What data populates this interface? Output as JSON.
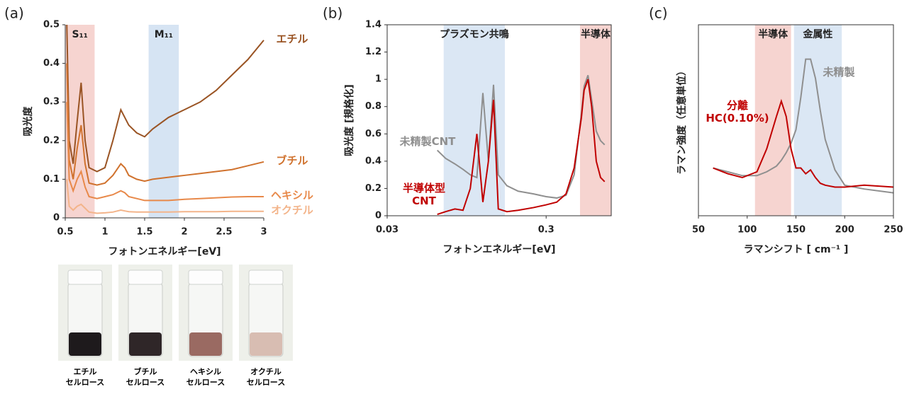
{
  "chart_data": [
    {
      "type": "line",
      "title": "(a)",
      "xlabel": "フォトンエネルギー[eV]",
      "ylabel": "吸光度",
      "x": [
        0.52,
        0.55,
        0.6,
        0.65,
        0.7,
        0.75,
        0.8,
        0.9,
        1.0,
        1.1,
        1.2,
        1.25,
        1.3,
        1.4,
        1.5,
        1.6,
        1.8,
        2.0,
        2.2,
        2.4,
        2.6,
        2.8,
        3.0
      ],
      "series": [
        {
          "name": "エチル",
          "color": "#9a5424",
          "values": [
            0.5,
            0.2,
            0.14,
            0.25,
            0.35,
            0.2,
            0.13,
            0.12,
            0.13,
            0.2,
            0.28,
            0.26,
            0.24,
            0.22,
            0.21,
            0.23,
            0.26,
            0.28,
            0.3,
            0.33,
            0.37,
            0.41,
            0.46
          ]
        },
        {
          "name": "ブチル",
          "color": "#d0722e",
          "values": [
            0.4,
            0.15,
            0.1,
            0.18,
            0.24,
            0.14,
            0.09,
            0.085,
            0.09,
            0.11,
            0.14,
            0.13,
            0.11,
            0.1,
            0.095,
            0.1,
            0.105,
            0.11,
            0.115,
            0.12,
            0.125,
            0.135,
            0.145
          ]
        },
        {
          "name": "ヘキシル",
          "color": "#e8894a",
          "values": [
            0.3,
            0.1,
            0.07,
            0.1,
            0.12,
            0.08,
            0.055,
            0.05,
            0.055,
            0.06,
            0.07,
            0.065,
            0.055,
            0.05,
            0.045,
            0.045,
            0.045,
            0.048,
            0.05,
            0.052,
            0.054,
            0.055,
            0.055
          ]
        },
        {
          "name": "オクチル",
          "color": "#f3b48a",
          "values": [
            0.1,
            0.03,
            0.02,
            0.03,
            0.035,
            0.025,
            0.015,
            0.012,
            0.013,
            0.015,
            0.02,
            0.018,
            0.016,
            0.015,
            0.015,
            0.015,
            0.015,
            0.016,
            0.016,
            0.016,
            0.017,
            0.017,
            0.017
          ]
        }
      ],
      "bands": [
        {
          "label": "S₁₁",
          "from": 0.5,
          "to": 0.87,
          "color": "#f6d4d0",
          "label_color": "#e39a78"
        },
        {
          "label": "M₁₁",
          "from": 1.55,
          "to": 1.93,
          "color": "#d6e4f3",
          "label_color": "#7fa3cf"
        }
      ],
      "xlim": [
        0.5,
        3
      ],
      "xticks": [
        0.5,
        1,
        1.5,
        2,
        2.5,
        3
      ],
      "ylim": [
        0,
        0.5
      ],
      "yticks": [
        0,
        0.1,
        0.2,
        0.3,
        0.4,
        0.5
      ],
      "frame": false,
      "log_x": false
    },
    {
      "type": "line",
      "title": "(b)",
      "xlabel": "フォトンエネルギー[eV]",
      "ylabel": "吸光度 [規格化]",
      "x": [
        0.062,
        0.07,
        0.08,
        0.09,
        0.1,
        0.11,
        0.12,
        0.13,
        0.14,
        0.15,
        0.17,
        0.2,
        0.25,
        0.3,
        0.35,
        0.4,
        0.45,
        0.5,
        0.52,
        0.55,
        0.58,
        0.62,
        0.66,
        0.7
      ],
      "series": [
        {
          "name": "未精製CNT",
          "color": "#8f8f8f",
          "values": [
            0.48,
            0.42,
            0.38,
            0.34,
            0.3,
            0.28,
            0.9,
            0.4,
            0.96,
            0.3,
            0.22,
            0.18,
            0.16,
            0.14,
            0.13,
            0.15,
            0.3,
            0.75,
            0.95,
            1.03,
            0.85,
            0.62,
            0.55,
            0.52
          ]
        },
        {
          "name": "半導体型\nCNT",
          "color": "#c00000",
          "values": [
            0.01,
            0.03,
            0.05,
            0.04,
            0.2,
            0.6,
            0.1,
            0.4,
            0.85,
            0.05,
            0.03,
            0.04,
            0.06,
            0.08,
            0.1,
            0.16,
            0.35,
            0.72,
            0.92,
            1.0,
            0.8,
            0.4,
            0.28,
            0.25
          ]
        }
      ],
      "bands": [
        {
          "label": "プラズモン共鳴",
          "from": 0.068,
          "to": 0.165,
          "color": "#dbe7f4",
          "label_color": "#4a7fc1"
        },
        {
          "label": "半導体",
          "from": 0.49,
          "to": 0.77,
          "color": "#f6d4d0",
          "label_color": "#e8813a"
        }
      ],
      "xlim": [
        0.03,
        0.77
      ],
      "xticks": [
        0.03,
        0.3
      ],
      "ylim": [
        0,
        1.4
      ],
      "yticks": [
        0,
        0.2,
        0.4,
        0.6,
        0.8,
        1,
        1.2,
        1.4
      ],
      "frame": true,
      "log_x": true
    },
    {
      "type": "line",
      "title": "(c)",
      "xlabel": "ラマンシフト [ cm⁻¹ ]",
      "ylabel": "ラマン強度（任意単位）",
      "x": [
        65,
        80,
        95,
        110,
        120,
        130,
        135,
        140,
        145,
        150,
        155,
        160,
        165,
        170,
        175,
        180,
        190,
        200,
        220,
        250
      ],
      "series": [
        {
          "name": "未精製",
          "color": "#8f8f8f",
          "values": [
            0.25,
            0.23,
            0.21,
            0.21,
            0.23,
            0.26,
            0.29,
            0.33,
            0.38,
            0.45,
            0.62,
            0.82,
            0.82,
            0.72,
            0.55,
            0.4,
            0.24,
            0.16,
            0.14,
            0.12
          ]
        },
        {
          "name": "分離\nHC(0.10%)",
          "color": "#c00000",
          "values": [
            0.25,
            0.22,
            0.2,
            0.23,
            0.35,
            0.52,
            0.6,
            0.52,
            0.35,
            0.25,
            0.25,
            0.22,
            0.24,
            0.2,
            0.17,
            0.16,
            0.15,
            0.15,
            0.16,
            0.15
          ]
        }
      ],
      "bands": [
        {
          "label": "半導体",
          "from": 108,
          "to": 145,
          "color": "#f6d4d0",
          "label_color": "#e8813a"
        },
        {
          "label": "金属性",
          "from": 148,
          "to": 197,
          "color": "#dbe7f4",
          "label_color": "#4a7fc1"
        }
      ],
      "xlim": [
        50,
        250
      ],
      "xticks": [
        50,
        100,
        150,
        200,
        250
      ],
      "ylim": [
        0,
        1
      ],
      "frame": true,
      "log_x": false
    }
  ],
  "photos": [
    {
      "caption": "エチル\nセルロース",
      "liquid_color": "#1e1a1c"
    },
    {
      "caption": "ブチル\nセルロース",
      "liquid_color": "#2f2628"
    },
    {
      "caption": "ヘキシル\nセルロース",
      "liquid_color": "#9a6a62"
    },
    {
      "caption": "オクチル\nセルロース",
      "liquid_color": "#d8bdb2"
    }
  ]
}
